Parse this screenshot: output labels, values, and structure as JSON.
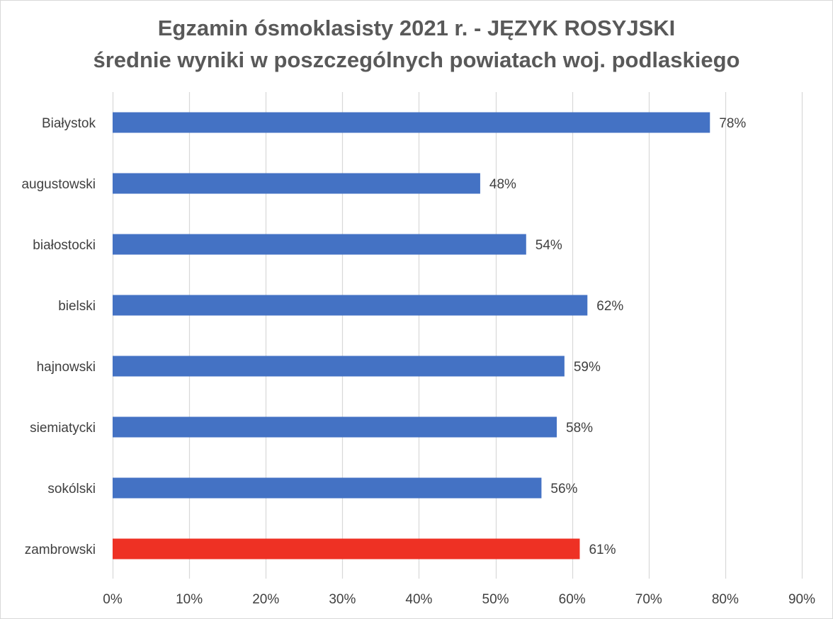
{
  "chart_data": {
    "type": "bar",
    "orientation": "horizontal",
    "title_lines": [
      "Egzamin ósmoklasisty 2021 r. - JĘZYK ROSYJSKI",
      "średnie wyniki w poszczególnych powiatach woj. podlaskiego"
    ],
    "categories": [
      "Białystok",
      "augustowski",
      "białostocki",
      "bielski",
      "hajnowski",
      "siemiatycki",
      "sokólski",
      "zambrowski"
    ],
    "values": [
      78,
      48,
      54,
      62,
      59,
      58,
      56,
      61
    ],
    "data_labels": [
      "78%",
      "48%",
      "54%",
      "62%",
      "59%",
      "58%",
      "56%",
      "61%"
    ],
    "bar_colors": [
      "#4472c4",
      "#4472c4",
      "#4472c4",
      "#4472c4",
      "#4472c4",
      "#4472c4",
      "#4472c4",
      "#ee3124"
    ],
    "x_ticks": [
      0,
      10,
      20,
      30,
      40,
      50,
      60,
      70,
      80,
      90
    ],
    "x_tick_labels": [
      "0%",
      "10%",
      "20%",
      "30%",
      "40%",
      "50%",
      "60%",
      "70%",
      "80%",
      "90%"
    ],
    "xlim": [
      0,
      90
    ],
    "unit": "%",
    "grid": "vertical",
    "legend": "none",
    "xlabel": "",
    "ylabel": ""
  }
}
